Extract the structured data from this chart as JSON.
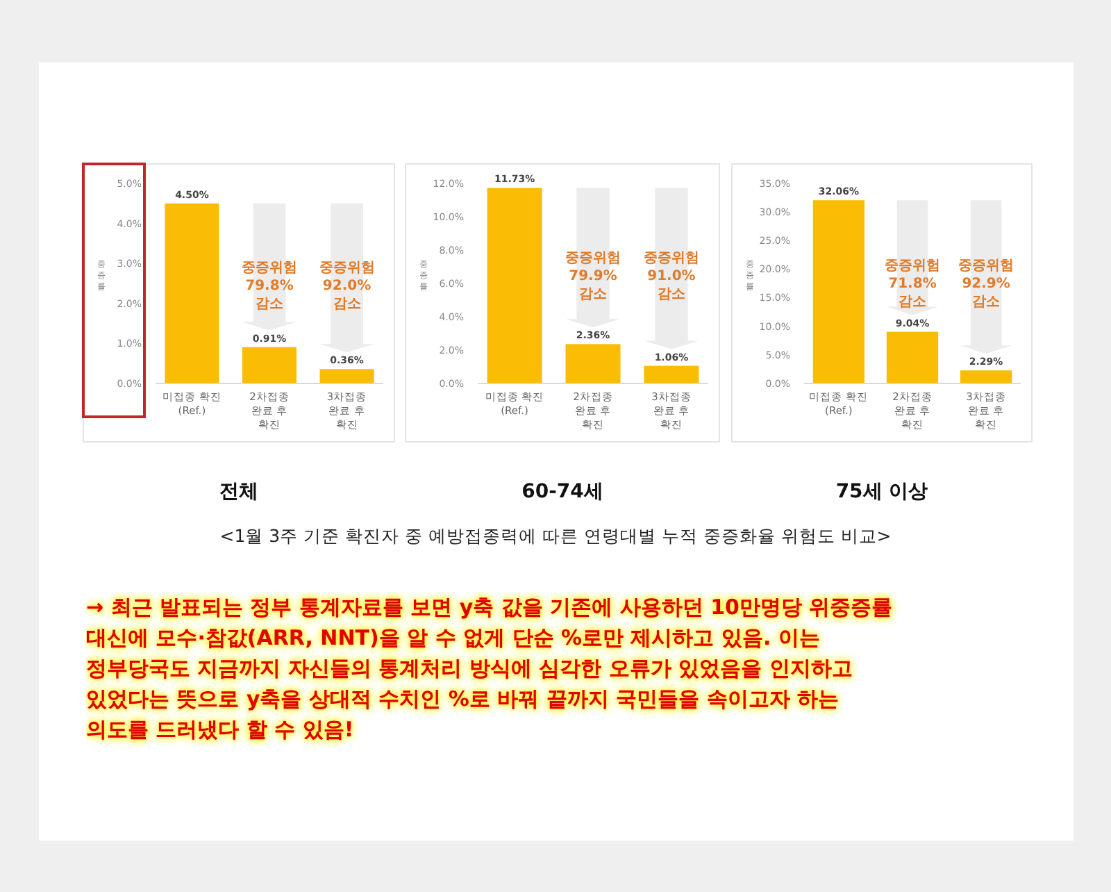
{
  "chart_data": [
    {
      "type": "bar",
      "title": "전체",
      "ylabel": "중증률",
      "categories": [
        "미접종 확진\n(Ref.)",
        "2차접종\n완료 후\n확진",
        "3차접종\n완료 후\n확진"
      ],
      "values": [
        4.5,
        0.91,
        0.36
      ],
      "value_labels": [
        "4.50%",
        "0.91%",
        "0.36%"
      ],
      "color": "#fbbc05",
      "ylim": [
        0,
        5
      ],
      "yticks": [
        {
          "value": 0,
          "label": "0.0%"
        },
        {
          "value": 1,
          "label": "1.0%"
        },
        {
          "value": 2,
          "label": "2.0%"
        },
        {
          "value": 3,
          "label": "3.0%"
        },
        {
          "value": 4,
          "label": "4.0%"
        },
        {
          "value": 5,
          "label": "5.0%"
        }
      ],
      "annotations": [
        "중증위험\n79.8%\n감소",
        "중증위험\n92.0%\n감소"
      ]
    },
    {
      "type": "bar",
      "title": "60-74세",
      "ylabel": "중증률",
      "categories": [
        "미접종 확진\n(Ref.)",
        "2차접종\n완료 후\n확진",
        "3차접종\n완료 후\n확진"
      ],
      "values": [
        11.73,
        2.36,
        1.06
      ],
      "value_labels": [
        "11.73%",
        "2.36%",
        "1.06%"
      ],
      "color": "#fbbc05",
      "ylim": [
        0,
        12
      ],
      "yticks": [
        {
          "value": 0,
          "label": "0.0%"
        },
        {
          "value": 2,
          "label": "2.0%"
        },
        {
          "value": 4,
          "label": "4.0%"
        },
        {
          "value": 6,
          "label": "6.0%"
        },
        {
          "value": 8,
          "label": "8.0%"
        },
        {
          "value": 10,
          "label": "10.0%"
        },
        {
          "value": 12,
          "label": "12.0%"
        }
      ],
      "annotations": [
        "중증위험\n79.9%\n감소",
        "중증위험\n91.0%\n감소"
      ]
    },
    {
      "type": "bar",
      "title": "75세 이상",
      "ylabel": "중증률",
      "categories": [
        "미접종 확진\n(Ref.)",
        "2차접종\n완료 후\n확진",
        "3차접종\n완료 후\n확진"
      ],
      "values": [
        32.06,
        9.04,
        2.29
      ],
      "value_labels": [
        "32.06%",
        "9.04%",
        "2.29%"
      ],
      "color": "#fbbc05",
      "ylim": [
        0,
        35
      ],
      "yticks": [
        {
          "value": 0,
          "label": "0.0%"
        },
        {
          "value": 5,
          "label": "5.0%"
        },
        {
          "value": 10,
          "label": "10.0%"
        },
        {
          "value": 15,
          "label": "15.0%"
        },
        {
          "value": 20,
          "label": "20.0%"
        },
        {
          "value": 25,
          "label": "25.0%"
        },
        {
          "value": 30,
          "label": "30.0%"
        },
        {
          "value": 35,
          "label": "35.0%"
        }
      ],
      "annotations": [
        "중증위험\n71.8%\n감소",
        "중증위험\n92.9%\n감소"
      ]
    },
    {
      "type": "other",
      "annotations": [
        "<1월 3주 기준 확진자 중 예방접종력에 따른 연령대별 누적 중증화율 위험도 비교>",
        "→ 최근 발표되는 정부 통계자료를 보면 y축 값을 기존에 사용하던 10만명당 위중증률\n대신에 모수·참값(ARR, NNT)을 알 수 없게 단순 %로만 제시하고 있음. 이는\n정부당국도 지금까지 자신들의 통계처리 방식에 심각한 오류가 있었음을 인지하고\n있었다는 뜻으로 y축을 상대적 수치인 %로 바꿔 끝까지 국민들을 속이고자 하는\n의도를 드러냈다 할 수 있음!"
      ]
    }
  ]
}
